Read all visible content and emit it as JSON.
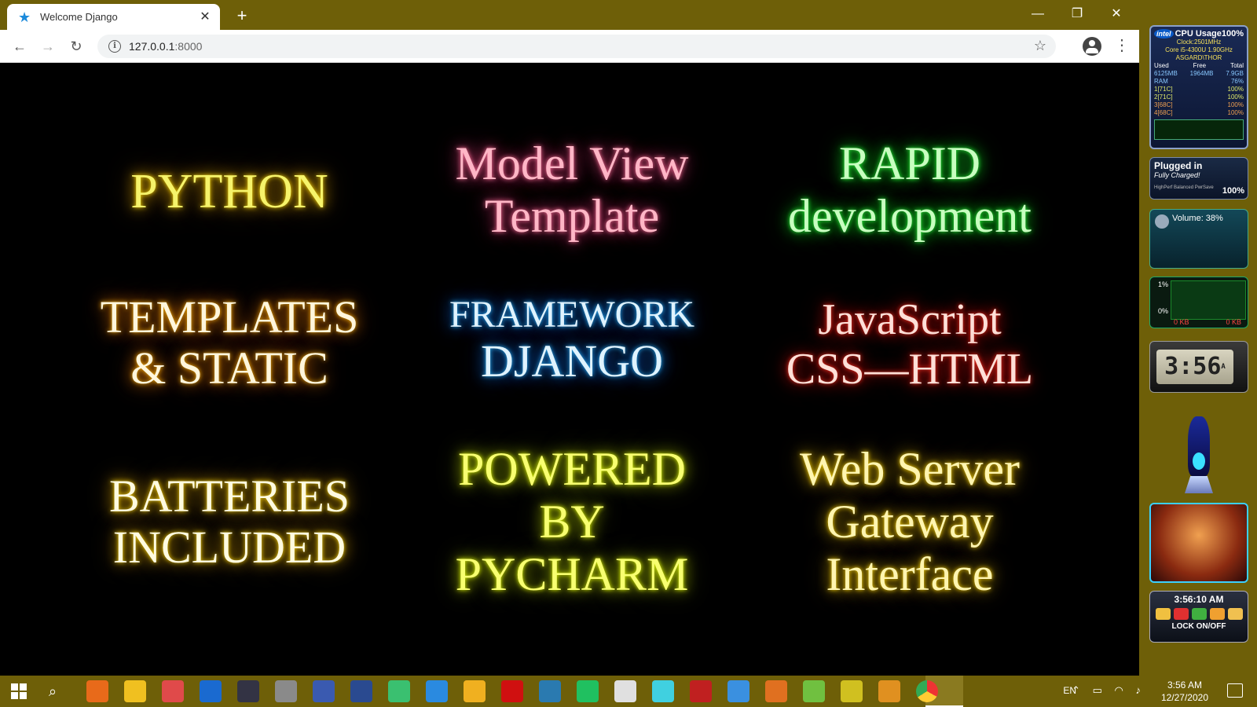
{
  "browser": {
    "tab_title": "Welcome Django",
    "tab_close": "✕",
    "new_tab": "+",
    "minimize": "—",
    "restore": "❐",
    "close": "✕",
    "url_host": "127.0.0.1",
    "url_port": ":8000",
    "back": "←",
    "forward": "→",
    "reload": "↻",
    "bookmark": "☆",
    "menu": "⋮",
    "icons": {
      "favicon": "star-icon",
      "info": "info-icon",
      "profile": "account-icon"
    }
  },
  "page": {
    "cells": {
      "python": [
        "PYTHON"
      ],
      "mvt": [
        "Model View",
        "Template"
      ],
      "rapid": [
        "RAPID",
        "development"
      ],
      "templates": [
        "TEMPLATES",
        "& STATIC"
      ],
      "framework": [
        "FRAMEWORK",
        "DJANGO"
      ],
      "js": [
        "JavaScript",
        "CSS—HTML"
      ],
      "batteries": [
        "BATTERIES",
        "INCLUDED"
      ],
      "powered": [
        "POWERED",
        "BY",
        "PYCHARM"
      ],
      "wsgi": [
        "Web Server",
        "Gateway",
        "Interface"
      ]
    }
  },
  "gadgets": {
    "cpu": {
      "logo": "intel",
      "title": "CPU Usage100%",
      "clock": "Clock:2501MHz",
      "model": "Core i5-4300U 1.90GHz",
      "host": "ASGARD\\THOR",
      "headers": [
        "Used",
        "Free",
        "Total"
      ],
      "values": [
        "6125MB",
        "1964MB",
        "7.9GB"
      ],
      "ram_label": "RAM",
      "ram_pct": "76%",
      "cores": [
        {
          "label": "1[71C]",
          "pct": "100%"
        },
        {
          "label": "2[71C]",
          "pct": "100%"
        },
        {
          "label": "3[68C]",
          "pct": "100%"
        },
        {
          "label": "4[68C]",
          "pct": "100%"
        }
      ]
    },
    "power": {
      "status": "Plugged in",
      "charge": "Fully Charged!",
      "modes": "HighPerf Balanced PwrSave",
      "percent": "100%"
    },
    "volume": {
      "label": "Volume: 38%"
    },
    "network": {
      "top": "1%",
      "bottom": "0%",
      "in": "0 KB",
      "out": "0 KB"
    },
    "clock": {
      "digits": "3:56",
      "suffix": "A"
    },
    "lock": {
      "time": "3:56:10 AM",
      "label": "LOCK ON/OFF"
    }
  },
  "taskbar": {
    "lang": "EN",
    "time": "3:56 AM",
    "date": "12/27/2020",
    "apps": [
      "ubuntu-icon",
      "sticky-notes-icon",
      "sketch-icon",
      "dictionary-icon",
      "calculator-icon",
      "photos-icon",
      "browser-icon",
      "remote-desktop-icon",
      "android-studio-icon",
      "vscode-icon",
      "folder-icon",
      "opera-icon",
      "mysql-icon",
      "pycharm-icon",
      "webstorm-icon",
      "atom-icon",
      "filezilla-icon",
      "pycharm-ce-icon",
      "git-icon",
      "network-icon",
      "notepad-icon",
      "sublime-icon",
      "chrome-icon"
    ]
  }
}
